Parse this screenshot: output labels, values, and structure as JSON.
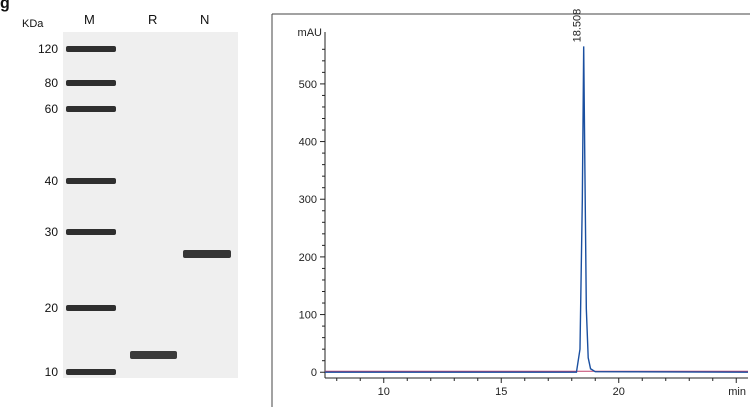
{
  "figure_letter": "g",
  "gel": {
    "unit_label": "KDa",
    "lanes": [
      {
        "id": "M",
        "label": "M"
      },
      {
        "id": "R",
        "label": "R"
      },
      {
        "id": "N",
        "label": "N"
      }
    ],
    "marker_weights": [
      "120",
      "80",
      "60",
      "40",
      "30",
      "20",
      "10"
    ],
    "sample_bands": [
      {
        "lane": "R",
        "kda": 13
      },
      {
        "lane": "N",
        "kda": 27
      }
    ]
  },
  "chromatogram": {
    "y_unit": "mAU",
    "x_unit": "min",
    "peak_label": "18.508",
    "colors": {
      "trace": "#1a4fa0",
      "baseline": "#c0406a",
      "axis": "#222222"
    }
  },
  "chart_data": {
    "type": "line",
    "title": "",
    "xlabel": "min",
    "ylabel": "mAU",
    "xlim": [
      7.5,
      25.5
    ],
    "ylim": [
      -10,
      590
    ],
    "x_ticks": [
      10,
      15,
      20
    ],
    "y_ticks": [
      0,
      100,
      200,
      300,
      400,
      500
    ],
    "x_tick_labels": [
      "10",
      "15",
      "20"
    ],
    "y_tick_labels": [
      "0",
      "100",
      "200",
      "300",
      "400",
      "500"
    ],
    "grid": false,
    "series": [
      {
        "x": [
          7.5,
          18.2,
          18.35,
          18.45,
          18.508,
          18.56,
          18.62,
          18.7,
          18.8,
          19.0,
          25.5
        ],
        "y": [
          0,
          0,
          40,
          300,
          565,
          350,
          110,
          25,
          6,
          1,
          0
        ]
      }
    ],
    "annotations": [
      {
        "x": 18.508,
        "y": 565,
        "text": "18.508"
      }
    ]
  }
}
